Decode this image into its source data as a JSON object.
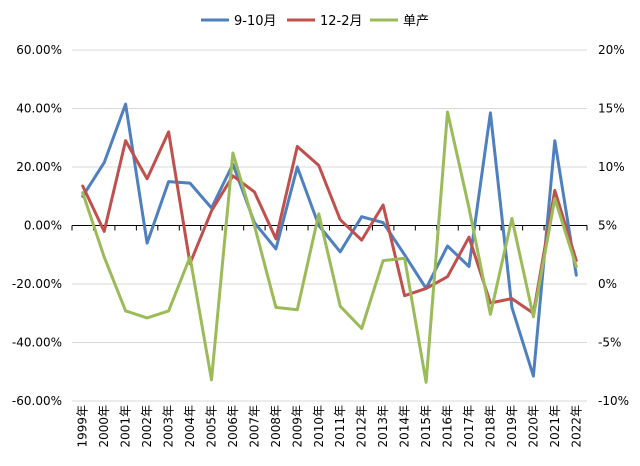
{
  "chart_data": {
    "type": "line",
    "categories": [
      "1999年",
      "2000年",
      "2001年",
      "2002年",
      "2003年",
      "2004年",
      "2005年",
      "2006年",
      "2007年",
      "2008年",
      "2009年",
      "2010年",
      "2011年",
      "2012年",
      "2013年",
      "2014年",
      "2015年",
      "2016年",
      "2017年",
      "2018年",
      "2019年",
      "2020年",
      "2021年",
      "2022年"
    ],
    "y_left": {
      "min": -60,
      "max": 60,
      "step": 20,
      "tick_labels": [
        "60.00%",
        "40.00%",
        "20.00%",
        "0.00%",
        "-20.00%",
        "-40.00%",
        "-60.00%"
      ]
    },
    "y_right": {
      "min": -10,
      "max": 20,
      "step": 5,
      "tick_labels": [
        "20%",
        "15%",
        "10%",
        "5%",
        "0%",
        "-5%",
        "-10%"
      ]
    },
    "series": [
      {
        "name": "9-10月",
        "axis": "left",
        "color": "#4E7FBF",
        "values": [
          10,
          21.5,
          41.5,
          -6,
          15,
          14.5,
          6,
          21,
          1,
          -8,
          20,
          0,
          -9,
          3,
          1,
          -10,
          -21.5,
          -7,
          -14,
          38.5,
          -28,
          -51.5,
          29,
          -17
        ]
      },
      {
        "name": "12-2月",
        "axis": "left",
        "color": "#C0504D",
        "values": [
          13.5,
          -2,
          29,
          16,
          32,
          -13,
          5,
          17,
          11.5,
          -4.5,
          27,
          20.5,
          2,
          -5,
          7,
          -24,
          -21.5,
          -17.5,
          -4,
          -26.5,
          -25,
          -30,
          12,
          -12
        ]
      },
      {
        "name": "单产",
        "axis": "right",
        "color": "#9BBB59",
        "values": [
          7.8,
          2.3,
          -2.3,
          -2.9,
          -2.3,
          2.3,
          -8.2,
          11.2,
          5,
          -2,
          -2.2,
          6,
          -1.9,
          -3.8,
          2,
          2.2,
          -8.4,
          14.7,
          6.5,
          -2.6,
          5.6,
          -2.8,
          7.3,
          1.5
        ]
      }
    ],
    "legend_position": "top-center",
    "grid": true
  }
}
